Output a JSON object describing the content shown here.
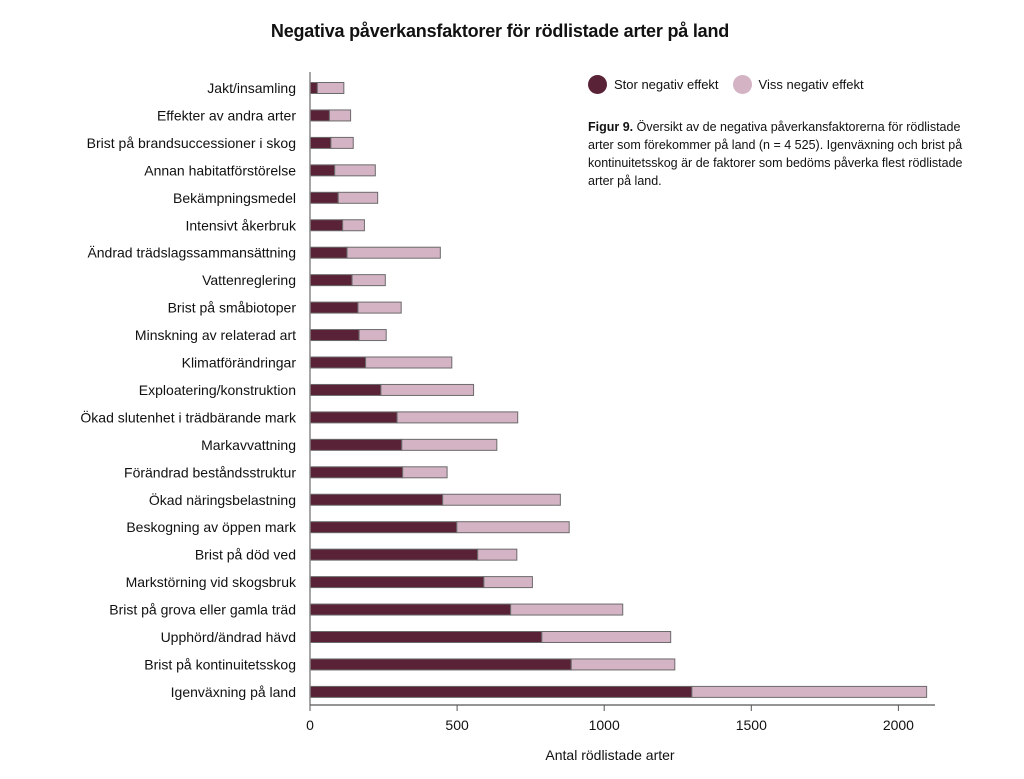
{
  "chart_data": {
    "type": "bar",
    "orientation": "horizontal",
    "stacked": true,
    "title": "Negativa påverkansfaktorer för rödlistade arter på land",
    "xlabel": "Antal rödlistade arter",
    "ylabel": "",
    "xlim": [
      0,
      2120
    ],
    "xticks": [
      0,
      500,
      1000,
      1500,
      2000
    ],
    "grid": false,
    "legend_position": "top-right",
    "categories": [
      "Jakt/insamling",
      "Effekter av andra arter",
      "Brist på brandsuccessioner i skog",
      "Annan habitatförstörelse",
      "Bekämpningsmedel",
      "Intensivt åkerbruk",
      "Ändrad trädslagssammansättning",
      "Vattenreglering",
      "Brist på småbiotoper",
      "Minskning av relaterad art",
      "Klimatförändringar",
      "Exploatering/konstruktion",
      "Ökad slutenhet i trädbärande mark",
      "Markavvattning",
      "Förändrad beståndsstruktur",
      "Ökad näringsbelastning",
      "Beskogning av öppen mark",
      "Brist på död ved",
      "Markstörning vid skogsbruk",
      "Brist på grova eller gamla träd",
      "Upphörd/ändrad hävd",
      "Brist på kontinuitetsskog",
      "Igenväxning på land"
    ],
    "series": [
      {
        "name": "Stor negativ effekt",
        "color": "#5a2236",
        "values": [
          25,
          66,
          71,
          84,
          96,
          111,
          126,
          143,
          163,
          167,
          189,
          241,
          296,
          312,
          315,
          451,
          499,
          570,
          591,
          682,
          788,
          888,
          1298
        ]
      },
      {
        "name": "Viss negativ effekt",
        "color": "#d4b3c4",
        "values": [
          90,
          72,
          76,
          138,
          134,
          74,
          317,
          113,
          147,
          92,
          293,
          315,
          410,
          323,
          151,
          400,
          382,
          133,
          165,
          381,
          438,
          352,
          798
        ]
      }
    ]
  },
  "caption": {
    "label": "Figur 9.",
    "text": " Översikt av de negativa påverkansfaktorerna för rödlistade arter som förekommer på land (n = 4 525). Igenväxning och brist på kontinuitetsskog är de faktorer som bedöms påverka flest rödlistade arter på land."
  }
}
